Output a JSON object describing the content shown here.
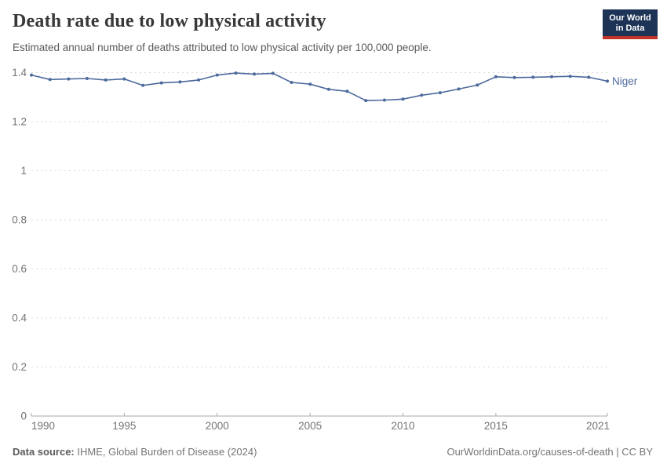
{
  "header": {
    "title": "Death rate due to low physical activity",
    "subtitle": "Estimated annual number of deaths attributed to low physical activity per 100,000 people."
  },
  "logo": {
    "line1": "Our World",
    "line2": "in Data",
    "bg_color": "#1d3456",
    "accent_color": "#c0342b"
  },
  "footer": {
    "source_label": "Data source:",
    "source_text": " IHME, Global Burden of Disease (2024)",
    "credit": "OurWorldinData.org/causes-of-death | CC BY"
  },
  "chart_data": {
    "type": "line",
    "title": "Death rate due to low physical activity",
    "subtitle": "Estimated annual number of deaths attributed to low physical activity per 100,000 people.",
    "xlabel": "",
    "ylabel": "",
    "x": [
      1990,
      1991,
      1992,
      1993,
      1994,
      1995,
      1996,
      1997,
      1998,
      1999,
      2000,
      2001,
      2002,
      2003,
      2004,
      2005,
      2006,
      2007,
      2008,
      2009,
      2010,
      2011,
      2012,
      2013,
      2014,
      2015,
      2016,
      2017,
      2018,
      2019,
      2020,
      2021
    ],
    "series": [
      {
        "name": "Niger",
        "color": "#4c6a9c",
        "values": [
          1.39,
          1.372,
          1.374,
          1.376,
          1.37,
          1.374,
          1.348,
          1.358,
          1.362,
          1.37,
          1.39,
          1.398,
          1.394,
          1.397,
          1.36,
          1.353,
          1.332,
          1.324,
          1.286,
          1.288,
          1.292,
          1.308,
          1.318,
          1.333,
          1.349,
          1.383,
          1.38,
          1.381,
          1.383,
          1.385,
          1.381,
          1.365
        ]
      }
    ],
    "xlim": [
      1990,
      2021
    ],
    "ylim": [
      0,
      1.4
    ],
    "yticks": [
      0,
      0.2,
      0.4,
      0.6,
      0.8,
      1,
      1.2,
      1.4
    ],
    "ytick_labels": [
      "0",
      "0.2",
      "0.4",
      "0.6",
      "0.8",
      "1",
      "1.2",
      "1.4"
    ],
    "xticks": [
      1990,
      1995,
      2000,
      2005,
      2010,
      2015,
      2021
    ],
    "xtick_labels": [
      "1990",
      "1995",
      "2000",
      "2005",
      "2010",
      "2015",
      "2021"
    ],
    "grid": "horizontal-dashed",
    "grid_color": "#dadada",
    "axis_color": "#a8a8a8",
    "tick_label_color": "#737373",
    "legend_position": "end-of-line-label"
  }
}
